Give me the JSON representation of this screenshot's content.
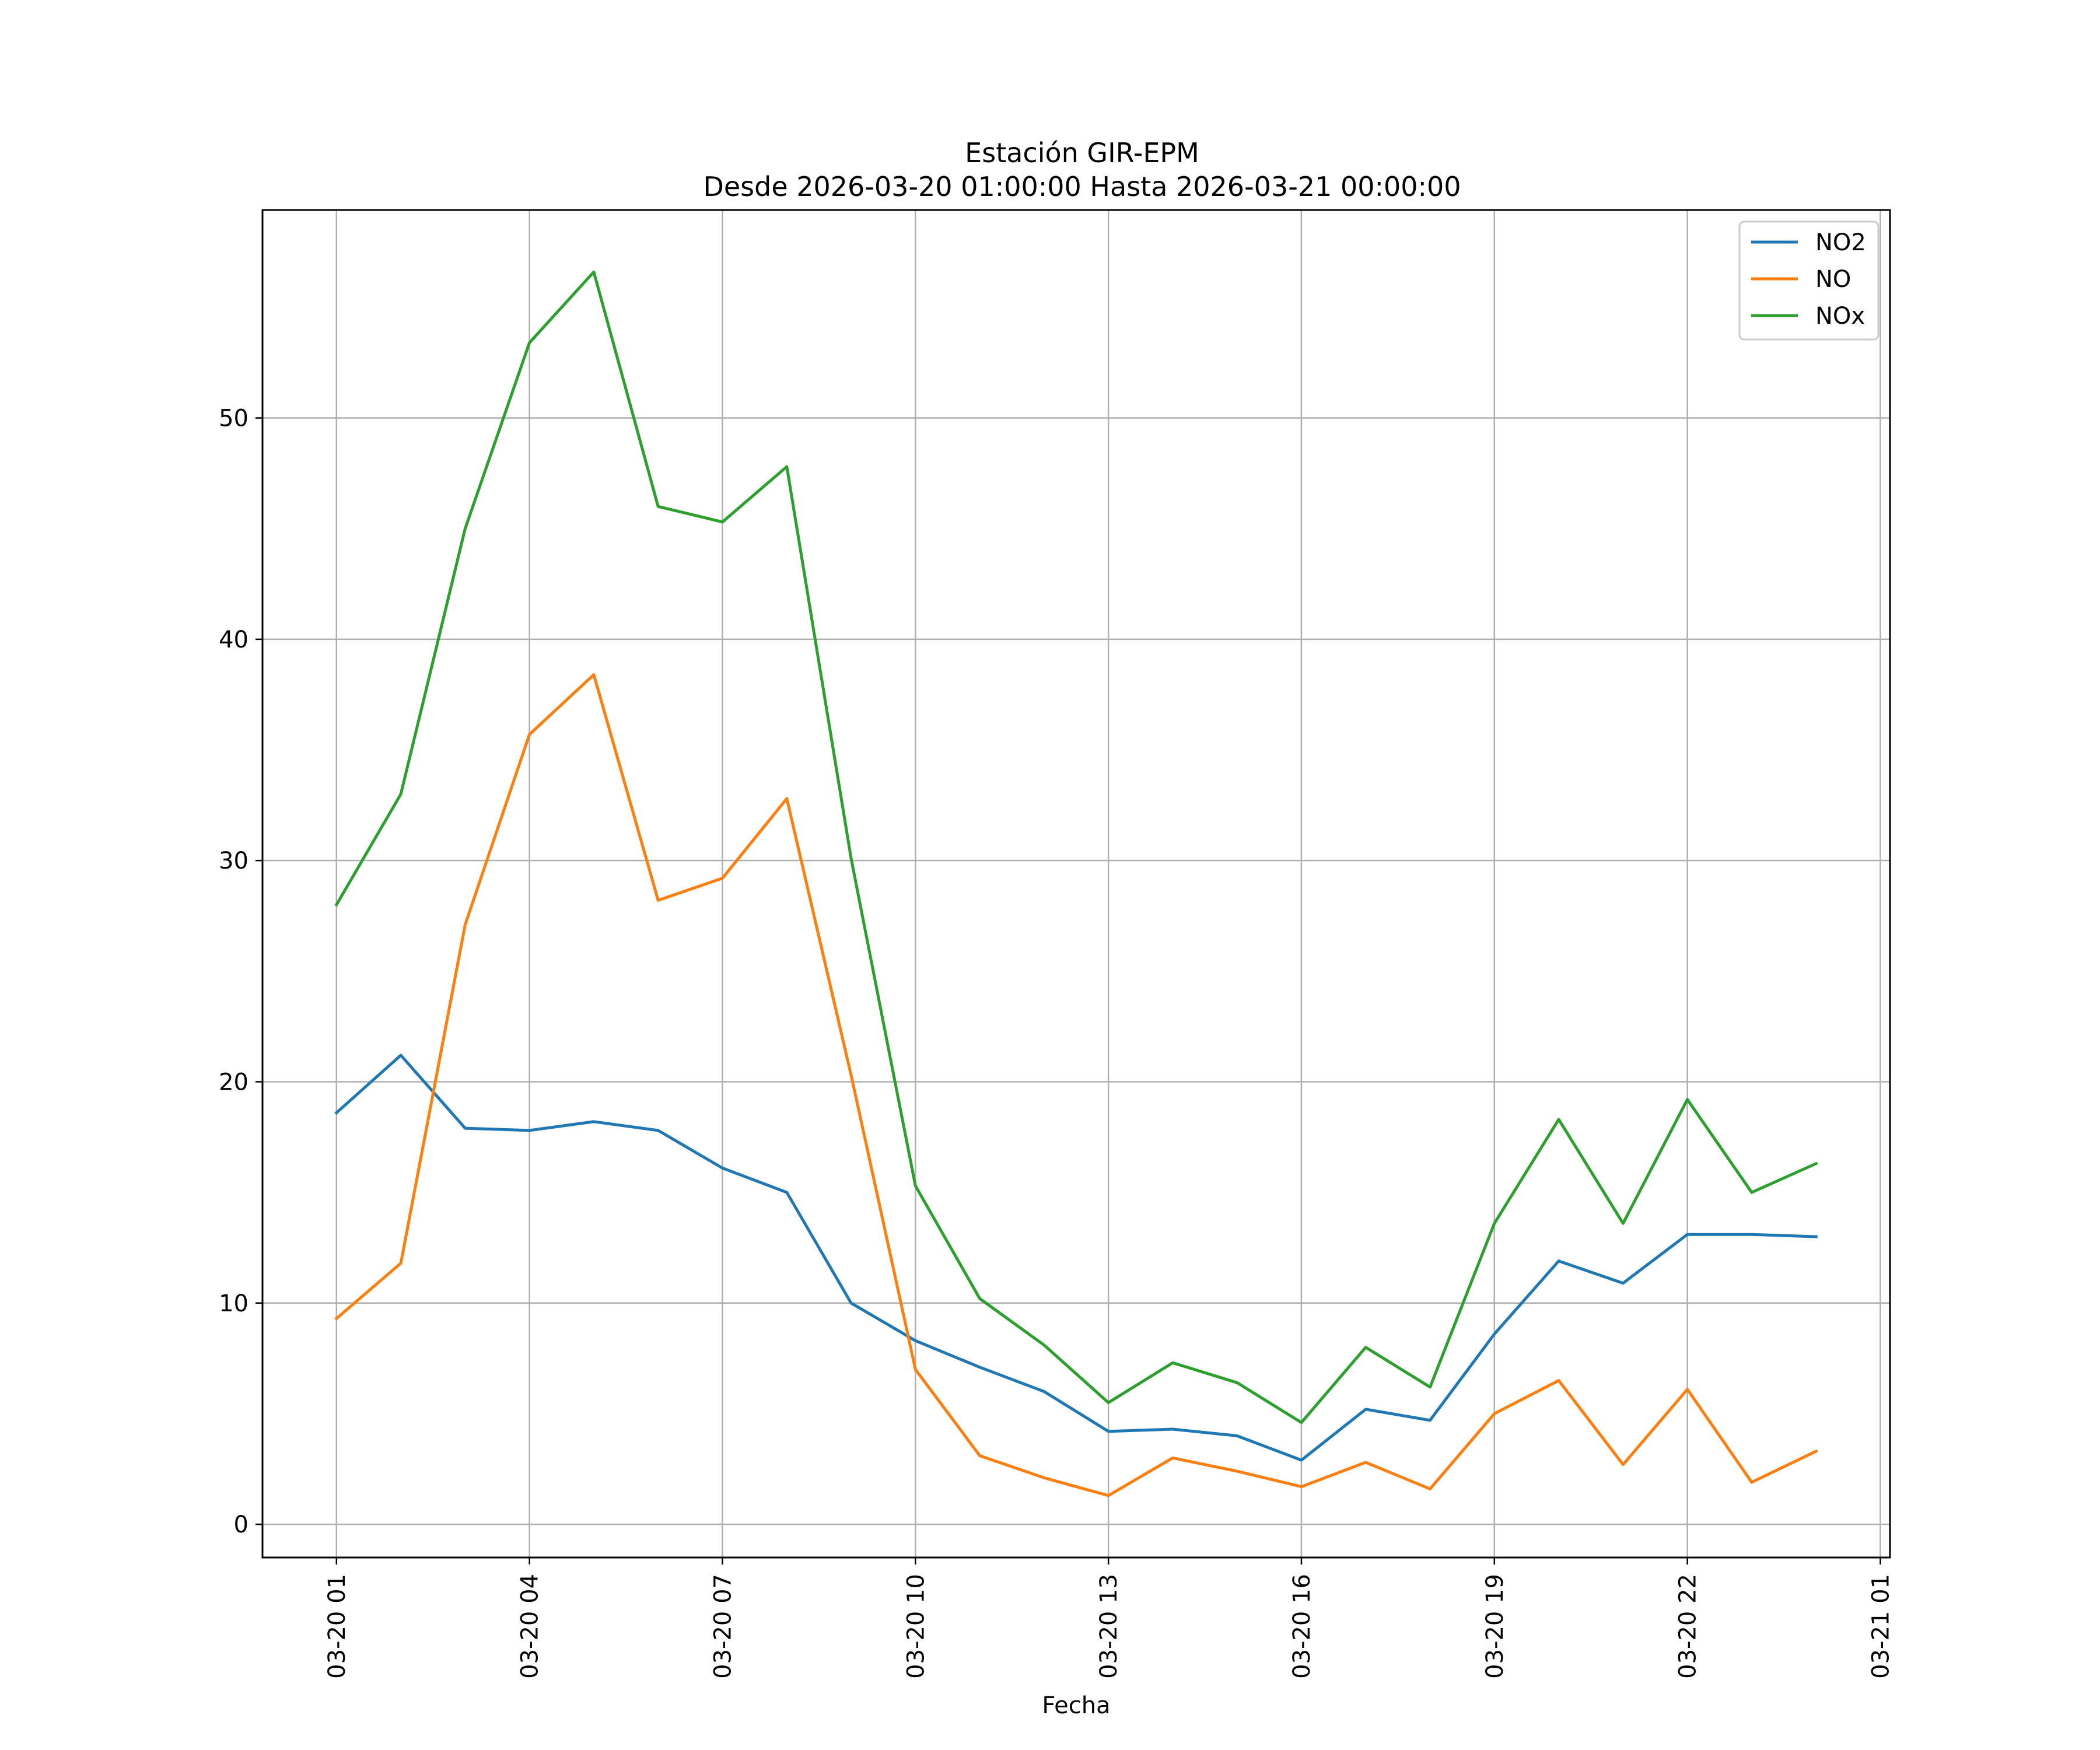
{
  "chart_data": {
    "type": "line",
    "title": "Estación GIR-EPM",
    "subtitle": "Desde 2026-03-20 01:00:00 Hasta 2026-03-21 00:00:00",
    "xlabel": "Fecha",
    "ylabel": "",
    "grid": true,
    "legend_position": "top-right",
    "x": [
      "2026-03-20 01:00",
      "2026-03-20 02:00",
      "2026-03-20 03:00",
      "2026-03-20 04:00",
      "2026-03-20 05:00",
      "2026-03-20 06:00",
      "2026-03-20 07:00",
      "2026-03-20 08:00",
      "2026-03-20 09:00",
      "2026-03-20 10:00",
      "2026-03-20 11:00",
      "2026-03-20 12:00",
      "2026-03-20 13:00",
      "2026-03-20 14:00",
      "2026-03-20 15:00",
      "2026-03-20 16:00",
      "2026-03-20 17:00",
      "2026-03-20 18:00",
      "2026-03-20 19:00",
      "2026-03-20 20:00",
      "2026-03-20 21:00",
      "2026-03-20 22:00",
      "2026-03-20 23:00",
      "2026-03-21 00:00"
    ],
    "xlim": [
      "2026-03-19 23:51",
      "2026-03-21 01:09"
    ],
    "ylim": [
      -1.5,
      59.4
    ],
    "x_tick_labels": [
      "03-20 01",
      "03-20 04",
      "03-20 07",
      "03-20 10",
      "03-20 13",
      "03-20 16",
      "03-20 19",
      "03-20 22",
      "03-21 01"
    ],
    "x_ticks": [
      "2026-03-20 01:00",
      "2026-03-20 04:00",
      "2026-03-20 07:00",
      "2026-03-20 10:00",
      "2026-03-20 13:00",
      "2026-03-20 16:00",
      "2026-03-20 19:00",
      "2026-03-20 22:00",
      "2026-03-21 01:00"
    ],
    "y_ticks": [
      0,
      10,
      20,
      30,
      40,
      50
    ],
    "y_tick_labels": [
      "0",
      "10",
      "20",
      "30",
      "40",
      "50"
    ],
    "series": [
      {
        "name": "NO2",
        "color": "#1f77b4",
        "values": [
          18.6,
          21.2,
          17.9,
          17.8,
          18.2,
          17.8,
          16.1,
          15.0,
          10.0,
          8.3,
          7.1,
          6.0,
          4.2,
          4.3,
          4.0,
          2.9,
          5.2,
          4.7,
          8.6,
          11.9,
          10.9,
          13.1,
          13.1,
          13.0
        ]
      },
      {
        "name": "NO",
        "color": "#ff7f0e",
        "values": [
          9.3,
          11.8,
          27.1,
          35.7,
          38.4,
          28.2,
          29.2,
          32.8,
          20.3,
          7.0,
          3.1,
          2.1,
          1.3,
          3.0,
          2.4,
          1.7,
          2.8,
          1.6,
          5.0,
          6.5,
          2.7,
          6.1,
          1.9,
          3.3
        ]
      },
      {
        "name": "NOx",
        "color": "#2ca02c",
        "values": [
          28.0,
          33.0,
          45.0,
          53.4,
          56.6,
          46.0,
          45.3,
          47.8,
          30.1,
          15.3,
          10.2,
          8.1,
          5.5,
          7.3,
          6.4,
          4.6,
          8.0,
          6.2,
          13.6,
          18.3,
          13.6,
          19.2,
          15.0,
          16.3
        ]
      }
    ]
  }
}
